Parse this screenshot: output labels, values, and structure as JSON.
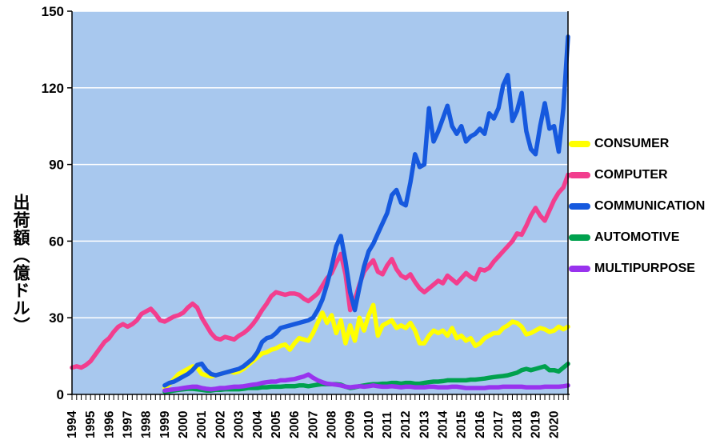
{
  "y_axis": {
    "title": "出荷額（億ドル）",
    "ticks": [
      0,
      30,
      60,
      90,
      120,
      150
    ]
  },
  "x_axis": {
    "years": [
      "1994",
      "1995",
      "1996",
      "1997",
      "1998",
      "1999",
      "2000",
      "2001",
      "2002",
      "2003",
      "2004",
      "2005",
      "2006",
      "2007",
      "2008",
      "2009",
      "2010",
      "2011",
      "2012",
      "2013",
      "2014",
      "2015",
      "2016",
      "2017",
      "2018",
      "2019",
      "2020"
    ]
  },
  "legend": [
    {
      "label": "CONSUMER",
      "color": "#FFFF00"
    },
    {
      "label": "COMPUTER",
      "color": "#F23E8E"
    },
    {
      "label": "COMMUNICATION",
      "color": "#1659DE"
    },
    {
      "label": "AUTOMOTIVE",
      "color": "#00A14E"
    },
    {
      "label": "MULTIPURPOSE",
      "color": "#9933EE"
    }
  ],
  "chart_data": {
    "type": "line",
    "x_start_year": 1994,
    "x_end_year": 2020,
    "points_per_year": 4,
    "ylim": [
      0,
      150
    ],
    "grid": true,
    "gridline_color": "#FFFFFF",
    "plot_background": "#A8C8EE",
    "axis_color": "#000000",
    "legend_position": "right",
    "ylabel": "出荷額（億ドル）",
    "series": [
      {
        "name": "CONSUMER",
        "color": "#FFFF00",
        "values": [
          null,
          null,
          null,
          null,
          null,
          null,
          null,
          null,
          null,
          null,
          null,
          null,
          null,
          null,
          null,
          null,
          null,
          null,
          null,
          null,
          2.5,
          4,
          6,
          8,
          9,
          10,
          11,
          10.5,
          8,
          7.5,
          7,
          7.5,
          8,
          8.5,
          9,
          8.5,
          9,
          10,
          11.5,
          13,
          14.5,
          16,
          16.5,
          17.5,
          18,
          19,
          19.5,
          17.5,
          20,
          22,
          21.5,
          21,
          24,
          28,
          32,
          28,
          31,
          24,
          29,
          20,
          27,
          21,
          30,
          25,
          31,
          35,
          23,
          27,
          28,
          29,
          26,
          27,
          26,
          28,
          25,
          20,
          20,
          23,
          25,
          24,
          25,
          23,
          26,
          22,
          23,
          21,
          22,
          19,
          20,
          22,
          23,
          24,
          24,
          26,
          27,
          28.5,
          28,
          26.5,
          23.5,
          24,
          25,
          26,
          25.5,
          24.5,
          25,
          26.5,
          25.5,
          26.5
        ]
      },
      {
        "name": "COMPUTER",
        "color": "#F23E8E",
        "values": [
          10.5,
          11,
          10.5,
          11.5,
          13,
          15.5,
          18,
          20.5,
          22,
          24.5,
          26.5,
          27.5,
          26.5,
          27.5,
          29,
          31.5,
          32.5,
          33.5,
          31.5,
          29,
          28.5,
          29.5,
          30.5,
          31,
          32,
          34,
          35.5,
          34,
          30,
          27,
          24,
          22,
          21.5,
          22.5,
          22,
          21.5,
          23,
          24,
          25.5,
          27.5,
          30,
          33,
          35.5,
          38.5,
          40,
          39.5,
          39,
          39.5,
          39.5,
          39,
          37.5,
          36.5,
          38,
          39.5,
          42.5,
          45.5,
          47.5,
          51.5,
          55,
          47,
          33,
          37,
          43,
          48,
          50.5,
          52.5,
          48,
          47,
          50.5,
          53,
          49,
          46.5,
          45.5,
          47,
          44,
          41.5,
          40,
          41.5,
          43,
          44.5,
          43.5,
          46.5,
          45,
          43.5,
          45.5,
          47.5,
          46,
          45,
          49,
          48.5,
          49.5,
          52,
          54,
          56,
          58,
          60,
          63,
          62.5,
          66,
          70,
          73,
          70,
          68,
          72,
          76,
          79,
          81,
          86
        ]
      },
      {
        "name": "COMMUNICATION",
        "color": "#1659DE",
        "values": [
          null,
          null,
          null,
          null,
          null,
          null,
          null,
          null,
          null,
          null,
          null,
          null,
          null,
          null,
          null,
          null,
          null,
          null,
          null,
          null,
          3.5,
          4.5,
          5,
          6,
          7,
          8,
          9.5,
          11.5,
          12,
          9.5,
          8,
          7.5,
          8,
          8.5,
          9,
          9.5,
          10,
          11,
          12.5,
          14,
          16.5,
          20.5,
          22,
          22.5,
          24,
          26,
          26.5,
          27,
          27.5,
          28,
          28.5,
          29,
          30,
          33,
          37,
          43,
          50,
          58,
          62,
          52,
          40,
          33,
          42,
          50,
          56,
          59,
          63,
          67,
          71,
          78,
          80,
          75,
          74,
          83,
          94,
          89,
          90,
          112,
          99,
          103,
          108,
          113,
          105,
          102,
          105,
          99,
          101,
          102,
          104,
          102,
          110,
          108,
          112,
          121,
          125,
          107,
          111,
          118,
          103,
          96,
          94,
          105,
          114,
          104,
          105,
          95,
          112,
          140
        ]
      },
      {
        "name": "AUTOMOTIVE",
        "color": "#00A14E",
        "values": [
          null,
          null,
          null,
          null,
          null,
          null,
          null,
          null,
          null,
          null,
          null,
          null,
          null,
          null,
          null,
          null,
          null,
          null,
          null,
          null,
          1,
          1.2,
          1.5,
          1.8,
          2,
          2.2,
          2.2,
          2,
          1.8,
          1.5,
          1.5,
          1.8,
          1.8,
          2,
          2,
          2,
          2,
          2.2,
          2.5,
          2.5,
          2.5,
          2.8,
          2.8,
          3,
          3,
          3,
          3.2,
          3.2,
          3.2,
          3.5,
          3.5,
          3.2,
          3.5,
          3.8,
          4,
          4,
          4,
          4,
          3.8,
          3,
          2.5,
          2.8,
          3.2,
          3.5,
          3.8,
          4,
          4,
          4.2,
          4.2,
          4.5,
          4.5,
          4.2,
          4.5,
          4.5,
          4.2,
          4.2,
          4.5,
          4.8,
          5,
          5,
          5.2,
          5.5,
          5.5,
          5.5,
          5.5,
          5.5,
          5.8,
          5.8,
          6,
          6.2,
          6.5,
          6.8,
          7,
          7.2,
          7.5,
          8,
          8.5,
          9.5,
          10,
          9.5,
          10,
          10.5,
          11,
          9.5,
          9.5,
          9,
          10.5,
          12
        ]
      },
      {
        "name": "MULTIPURPOSE",
        "color": "#9933EE",
        "values": [
          null,
          null,
          null,
          null,
          null,
          null,
          null,
          null,
          null,
          null,
          null,
          null,
          null,
          null,
          null,
          null,
          null,
          null,
          null,
          null,
          1.5,
          1.8,
          2,
          2.2,
          2.5,
          2.8,
          3,
          3,
          2.5,
          2.2,
          2,
          2.2,
          2.5,
          2.5,
          2.8,
          3,
          3,
          3.2,
          3.5,
          3.8,
          4,
          4.5,
          4.8,
          5,
          5,
          5.5,
          5.5,
          5.8,
          6,
          6.5,
          7,
          7.8,
          6.5,
          5.5,
          4.8,
          4.2,
          4,
          3.8,
          3.5,
          3,
          2.8,
          3,
          3.2,
          3,
          3.2,
          3.5,
          3.2,
          3,
          3,
          3.2,
          3,
          2.8,
          3,
          3,
          2.8,
          2.8,
          2.8,
          3,
          3,
          2.8,
          2.8,
          2.8,
          3,
          3,
          2.8,
          2.5,
          2.5,
          2.5,
          2.5,
          2.5,
          2.8,
          2.8,
          2.8,
          3,
          3,
          3,
          3,
          3,
          2.8,
          2.8,
          2.8,
          2.8,
          3,
          3,
          3,
          3,
          3.2,
          3.5
        ]
      }
    ]
  }
}
